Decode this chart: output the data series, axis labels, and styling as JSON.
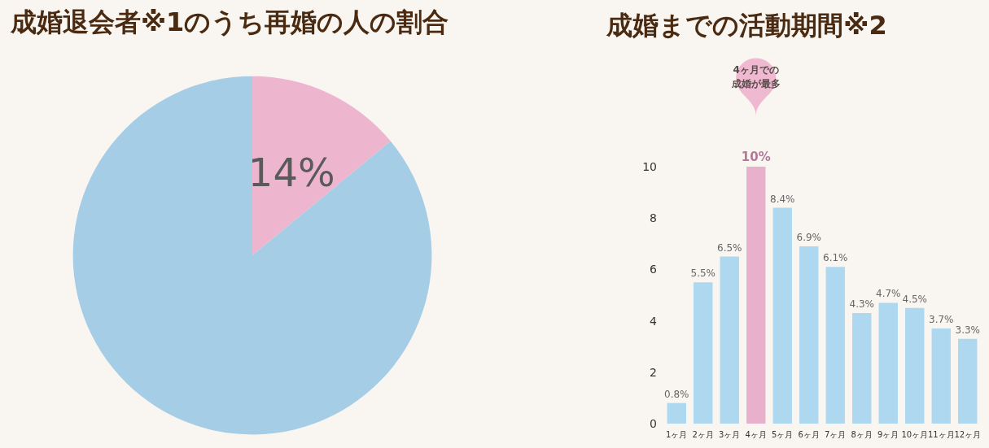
{
  "chart_data": [
    {
      "type": "pie",
      "title": "成婚退会者※1のうち再婚の人の割合",
      "categories": [
        null,
        null
      ],
      "values": [
        14,
        86
      ],
      "colors": [
        "#eeb5cf",
        "#a6cde6"
      ],
      "value_labels": [
        "14%",
        null
      ]
    },
    {
      "type": "bar",
      "title": "成婚までの活動期間※2",
      "categories": [
        "1ヶ月",
        "2ヶ月",
        "3ヶ月",
        "4ヶ月",
        "5ヶ月",
        "6ヶ月",
        "7ヶ月",
        "8ヶ月",
        "9ヶ月",
        "10ヶ月",
        "11ヶ月",
        "12ヶ月"
      ],
      "values": [
        0.8,
        5.5,
        6.5,
        10,
        8.4,
        6.9,
        6.1,
        4.3,
        4.7,
        4.5,
        3.7,
        3.3
      ],
      "colors": [
        "#add8f0",
        "#add8f0",
        "#add8f0",
        "#e8b1cb",
        "#add8f0",
        "#add8f0",
        "#add8f0",
        "#add8f0",
        "#add8f0",
        "#add8f0",
        "#add8f0",
        "#add8f0"
      ],
      "value_labels": [
        "0.8%",
        "5.5%",
        "6.5%",
        "10%",
        "8.4%",
        "6.9%",
        "6.1%",
        "4.3%",
        "4.7%",
        "4.5%",
        "3.7%",
        "3.3%"
      ],
      "ylim": [
        0,
        10
      ],
      "yticks": [
        0,
        2,
        4,
        6,
        8,
        10
      ],
      "grid": false,
      "annotations": [
        "4ヶ月での成婚が最多"
      ]
    }
  ]
}
